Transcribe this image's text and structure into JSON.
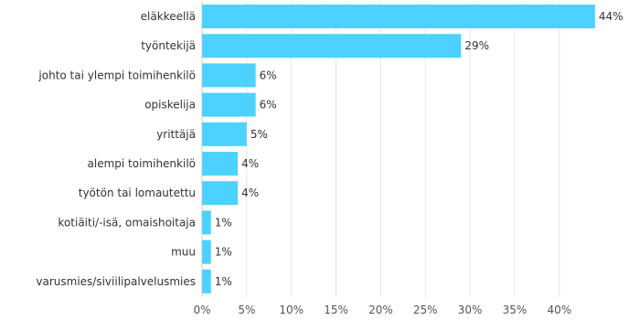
{
  "chart_data": {
    "type": "bar",
    "orientation": "horizontal",
    "categories": [
      "eläkkeellä",
      "työntekijä",
      "johto tai ylempi toimihenkilö",
      "opiskelija",
      "yrittäjä",
      "alempi toimihenkilö",
      "työtön tai lomautettu",
      "kotiäiti/-isä, omaishoitaja",
      "muu",
      "varusmies/siviilipalvelusmies"
    ],
    "values": [
      44,
      29,
      6,
      6,
      5,
      4,
      4,
      1,
      1,
      1
    ],
    "value_labels": [
      "44%",
      "29%",
      "6%",
      "6%",
      "5%",
      "4%",
      "4%",
      "1%",
      "1%",
      "1%"
    ],
    "x_ticks": [
      "0%",
      "5%",
      "10%",
      "15%",
      "20%",
      "25%",
      "30%",
      "35%",
      "40%"
    ],
    "xlim": [
      0,
      45
    ],
    "grid": true,
    "bar_color": "#4dd2ff"
  }
}
